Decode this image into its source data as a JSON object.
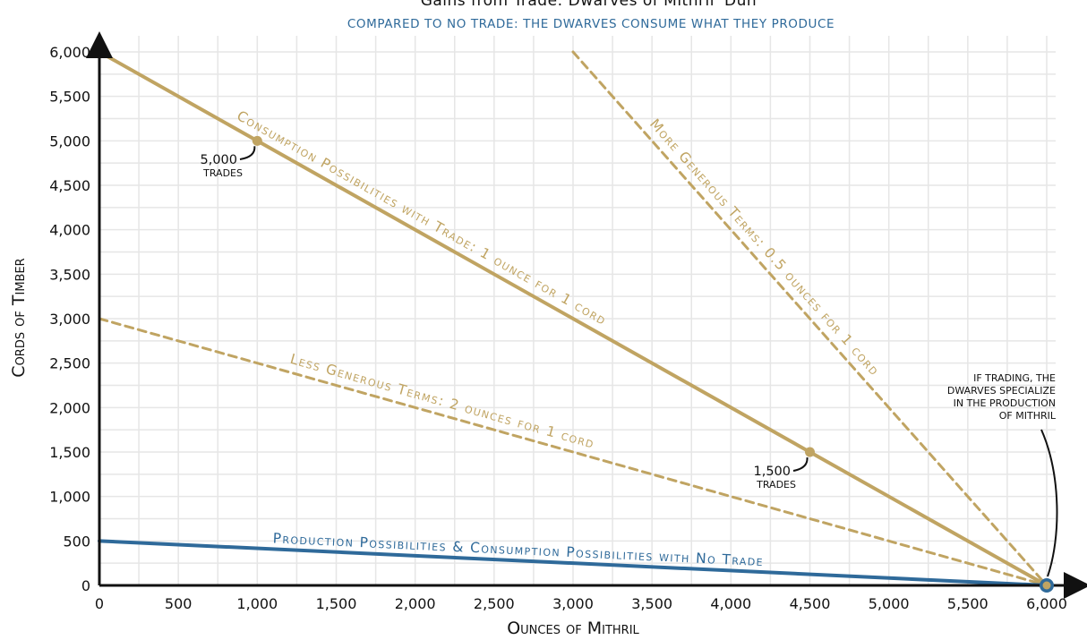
{
  "chart_data": {
    "type": "line",
    "title": "Gains from Trade: Dwarves of Mithril 'Dun'",
    "subtitle": "COMPARED TO NO TRADE: THE DWARVES CONSUME WHAT THEY PRODUCE",
    "xlabel": "Ounces of Mithril",
    "ylabel": "Cords of Timber",
    "xlim": [
      0,
      6000
    ],
    "ylim": [
      0,
      6000
    ],
    "xticks": [
      "0",
      "500",
      "1,000",
      "1,500",
      "2,000",
      "2,500",
      "3,000",
      "3,500",
      "4,000",
      "4,500",
      "5,000",
      "5,500",
      "6,000"
    ],
    "yticks": [
      "0",
      "500",
      "1,000",
      "1,500",
      "2,000",
      "2,500",
      "3,000",
      "3,500",
      "4,000",
      "4,500",
      "5,000",
      "5,500",
      "6,000"
    ],
    "grid": true,
    "colors": {
      "trade": "#c0a462",
      "no_trade": "#2f6a9a",
      "axis": "#111111",
      "grid": "#e6e6e6"
    },
    "series": [
      {
        "name": "Consumption Possibilities with Trade: 1 ounce for 1 cord",
        "style": "solid",
        "color": "#c0a462",
        "points": [
          [
            0,
            6000
          ],
          [
            6000,
            0
          ]
        ]
      },
      {
        "name": "More Generous Terms: 0.5 ounces for 1 cord",
        "style": "dashed",
        "color": "#c0a462",
        "points": [
          [
            3000,
            6000
          ],
          [
            6000,
            0
          ]
        ]
      },
      {
        "name": "Less Generous Terms: 2 ounces for 1 cord",
        "style": "dashed",
        "color": "#c0a462",
        "points": [
          [
            0,
            3000
          ],
          [
            6000,
            0
          ]
        ]
      },
      {
        "name": "Production Possibilities & Consumption Possibilities with No Trade",
        "style": "solid",
        "color": "#2f6a9a",
        "points": [
          [
            0,
            500
          ],
          [
            6000,
            0
          ]
        ]
      }
    ],
    "points": [
      {
        "x": 1000,
        "y": 5000,
        "label": "5,000",
        "sublabel": "TRADES"
      },
      {
        "x": 4500,
        "y": 1500,
        "label": "1,500",
        "sublabel": "TRADES"
      },
      {
        "x": 6000,
        "y": 0,
        "label": ""
      }
    ],
    "annotation": [
      "IF TRADING, THE",
      "DWARVES SPECIALIZE",
      "IN THE PRODUCTION",
      "OF MITHRIL"
    ]
  }
}
